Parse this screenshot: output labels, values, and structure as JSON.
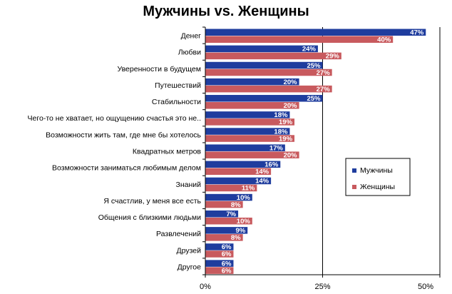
{
  "chart_data": {
    "type": "bar",
    "orientation": "horizontal",
    "title": "Мужчины vs. Женщины",
    "categories": [
      "Денег",
      "Любви",
      "Уверенности в будущем",
      "Путешествий",
      "Стабильности",
      "Чего-то не хватает, но ощущению счастья это не..",
      "Возможности жить там, где мне бы хотелось",
      "Квадратных метров",
      "Возможности заниматься любимым делом",
      "Знаний",
      "Я счастлив, у меня все есть",
      "Общения с близкими людьми",
      "Развлечений",
      "Друзей",
      "Другое"
    ],
    "series": [
      {
        "name": "Мужчины",
        "color": "#1f3d9e",
        "values": [
          47,
          24,
          25,
          20,
          25,
          18,
          18,
          17,
          16,
          14,
          10,
          7,
          9,
          6,
          6
        ]
      },
      {
        "name": "Женщины",
        "color": "#c85a5e",
        "values": [
          40,
          29,
          27,
          27,
          20,
          19,
          19,
          20,
          14,
          11,
          8,
          10,
          8,
          6,
          6
        ]
      }
    ],
    "value_suffix": "%",
    "xlim": [
      0,
      50
    ],
    "x_ticks": [
      0,
      25,
      50
    ],
    "x_tick_labels": [
      "0%",
      "25%",
      "50%"
    ],
    "grid": "vertical",
    "legend_position": "right"
  }
}
